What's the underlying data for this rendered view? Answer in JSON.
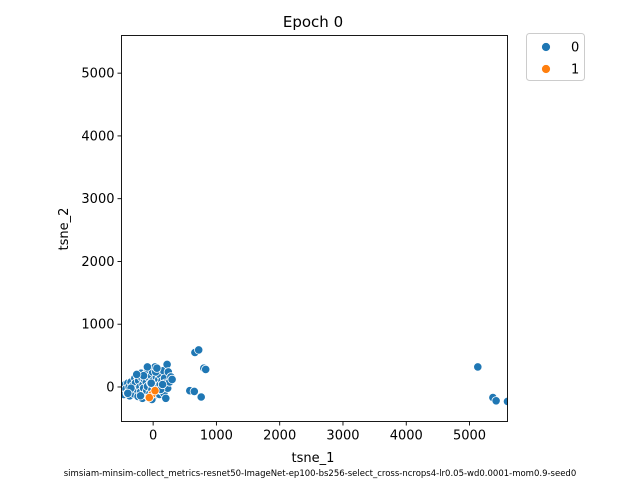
{
  "chart_data": {
    "type": "scatter",
    "title": "Epoch 0",
    "xlabel": "tsne_1",
    "ylabel": "tsne_2",
    "caption": "simsiam-minsim-collect_metrics-resnet50-ImageNet-ep100-bs256-select_cross-ncrops4-lr0.05-wd0.0001-mom0.9-seed0",
    "xlim": [
      -500,
      5600
    ],
    "ylim": [
      -550,
      5600
    ],
    "xticks": [
      {
        "value": 0,
        "label": "0"
      },
      {
        "value": 1000,
        "label": "1000"
      },
      {
        "value": 2000,
        "label": "2000"
      },
      {
        "value": 3000,
        "label": "3000"
      },
      {
        "value": 4000,
        "label": "4000"
      },
      {
        "value": 5000,
        "label": "5000"
      }
    ],
    "yticks": [
      {
        "value": 0,
        "label": "0"
      },
      {
        "value": 1000,
        "label": "1000"
      },
      {
        "value": 2000,
        "label": "2000"
      },
      {
        "value": 3000,
        "label": "3000"
      },
      {
        "value": 4000,
        "label": "4000"
      },
      {
        "value": 5000,
        "label": "5000"
      }
    ],
    "grid": false,
    "legend_position": "outside-top-right",
    "series": [
      {
        "name": "0",
        "color": "#1f77b4",
        "points": [
          [
            -480,
            20
          ],
          [
            -470,
            -60
          ],
          [
            -460,
            -120
          ],
          [
            -440,
            40
          ],
          [
            -430,
            -30
          ],
          [
            -410,
            -100
          ],
          [
            -400,
            60
          ],
          [
            -380,
            0
          ],
          [
            -370,
            -140
          ],
          [
            -350,
            80
          ],
          [
            -340,
            -60
          ],
          [
            -320,
            20
          ],
          [
            -300,
            -110
          ],
          [
            -290,
            140
          ],
          [
            -280,
            60
          ],
          [
            -260,
            -40
          ],
          [
            -250,
            180
          ],
          [
            -240,
            -150
          ],
          [
            -230,
            100
          ],
          [
            -210,
            0
          ],
          [
            -200,
            -80
          ],
          [
            -190,
            220
          ],
          [
            -180,
            150
          ],
          [
            -170,
            -180
          ],
          [
            -160,
            40
          ],
          [
            -150,
            -20
          ],
          [
            -140,
            120
          ],
          [
            -130,
            -120
          ],
          [
            -120,
            200
          ],
          [
            -110,
            80
          ],
          [
            -100,
            -60
          ],
          [
            -90,
            10
          ],
          [
            -80,
            260
          ],
          [
            -70,
            -160
          ],
          [
            -60,
            140
          ],
          [
            -50,
            -100
          ],
          [
            -40,
            60
          ],
          [
            -30,
            180
          ],
          [
            -20,
            -40
          ],
          [
            -10,
            240
          ],
          [
            0,
            100
          ],
          [
            10,
            -140
          ],
          [
            20,
            20
          ],
          [
            30,
            320
          ],
          [
            40,
            -80
          ],
          [
            50,
            160
          ],
          [
            60,
            60
          ],
          [
            70,
            -20
          ],
          [
            80,
            220
          ],
          [
            90,
            120
          ],
          [
            100,
            -120
          ],
          [
            110,
            40
          ],
          [
            120,
            180
          ],
          [
            130,
            -60
          ],
          [
            140,
            100
          ],
          [
            150,
            0
          ],
          [
            160,
            260
          ],
          [
            170,
            -100
          ],
          [
            180,
            140
          ],
          [
            190,
            60
          ],
          [
            200,
            -180
          ],
          [
            210,
            20
          ],
          [
            220,
            360
          ],
          [
            230,
            -20
          ],
          [
            240,
            240
          ],
          [
            260,
            80
          ],
          [
            280,
            160
          ],
          [
            300,
            120
          ],
          [
            -200,
            -140
          ],
          [
            -150,
            180
          ],
          [
            -90,
            320
          ],
          [
            -30,
            60
          ],
          [
            40,
            240
          ],
          [
            120,
            -40
          ],
          [
            -260,
            200
          ],
          [
            -350,
            -20
          ],
          [
            -400,
            -100
          ],
          [
            -20,
            -200
          ],
          [
            60,
            300
          ],
          [
            150,
            40
          ],
          [
            580,
            -60
          ],
          [
            650,
            -70
          ],
          [
            660,
            550
          ],
          [
            720,
            590
          ],
          [
            760,
            -160
          ],
          [
            800,
            300
          ],
          [
            830,
            280
          ],
          [
            5130,
            320
          ],
          [
            5370,
            -170
          ],
          [
            5420,
            -220
          ],
          [
            5600,
            -230
          ]
        ]
      },
      {
        "name": "1",
        "color": "#ff7f0e",
        "points": [
          [
            -20,
            -120
          ],
          [
            30,
            -60
          ],
          [
            -60,
            -170
          ]
        ]
      }
    ]
  }
}
